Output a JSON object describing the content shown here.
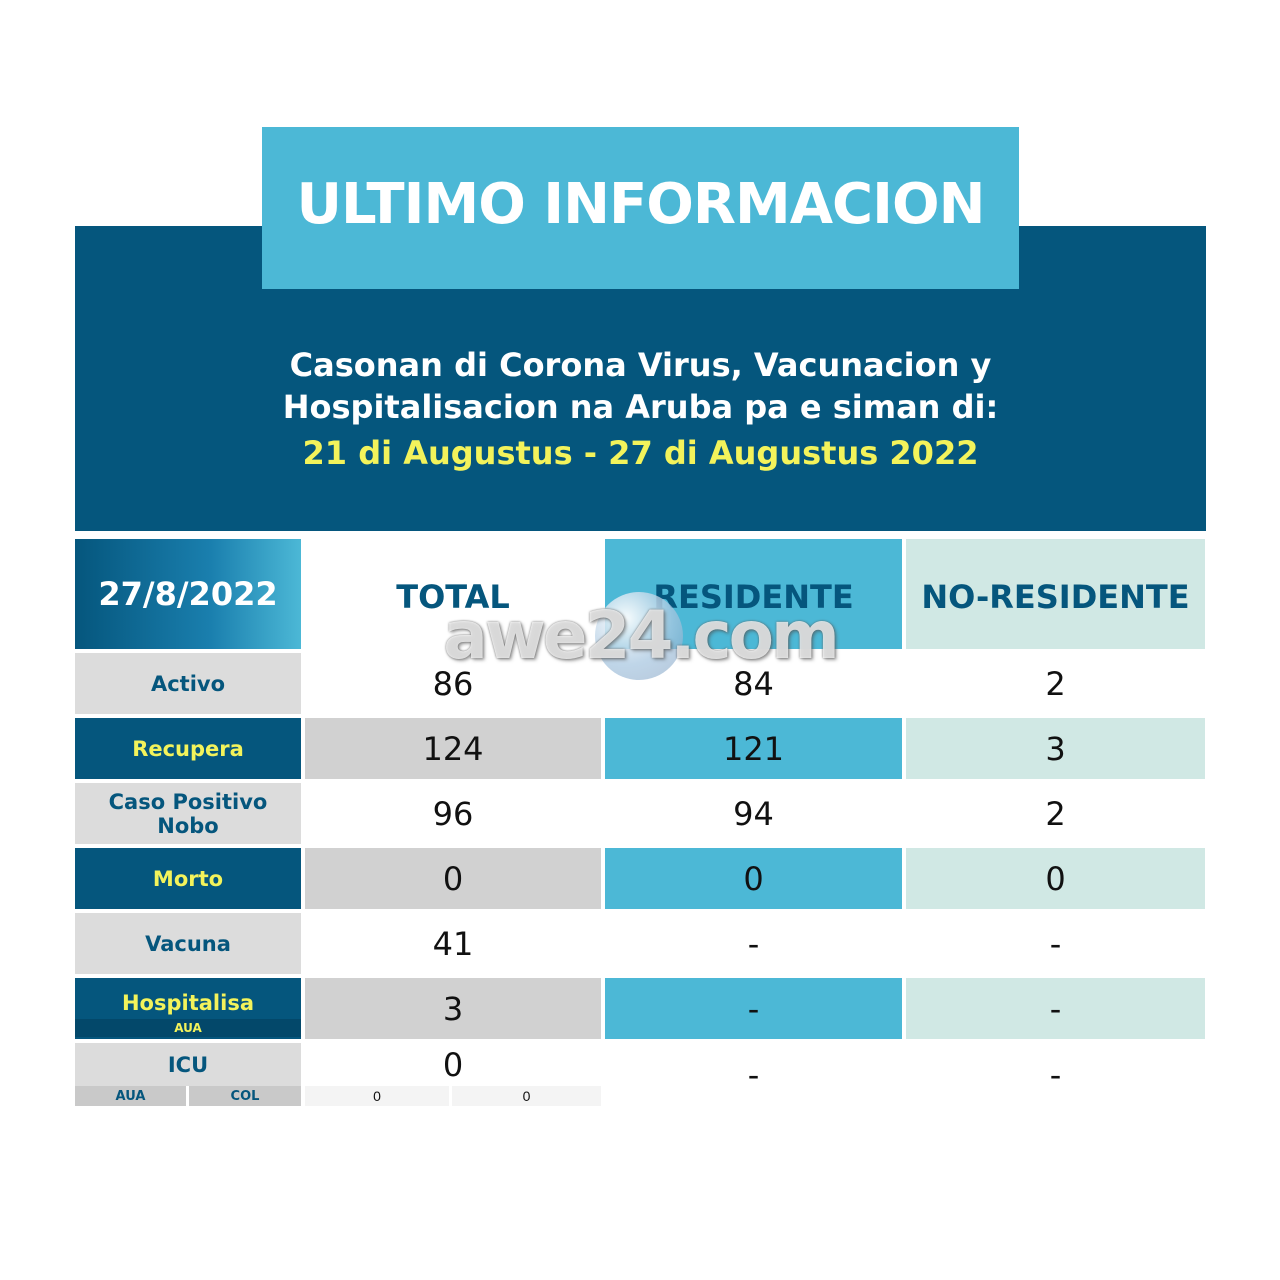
{
  "header": {
    "title": "ULTIMO INFORMACION",
    "subtitle_line1": "Casonan di Corona Virus, Vacunacion y",
    "subtitle_line2": "Hospitalisacion na Aruba pa e siman di:",
    "date_range": "21 di Augustus - 27 di Augustus 2022"
  },
  "table": {
    "date": "27/8/2022",
    "columns": [
      "TOTAL",
      "RESIDENTE",
      "NO-RESIDENTE"
    ],
    "rows": [
      {
        "label": "Activo",
        "total": "86",
        "residente": "84",
        "no_residente": "2"
      },
      {
        "label": "Recupera",
        "total": "124",
        "residente": "121",
        "no_residente": "3"
      },
      {
        "label": "Caso Positivo Nobo",
        "total": "96",
        "residente": "94",
        "no_residente": "2"
      },
      {
        "label": "Morto",
        "total": "0",
        "residente": "0",
        "no_residente": "0"
      },
      {
        "label": "Vacuna",
        "total": "41",
        "residente": "-",
        "no_residente": "-"
      },
      {
        "label": "Hospitalisa",
        "sublabel": "AUA",
        "total": "3",
        "residente": "-",
        "no_residente": "-"
      },
      {
        "label": "ICU",
        "total": "0",
        "residente": "-",
        "no_residente": "-",
        "sub": {
          "aua_label": "AUA",
          "col_label": "COL",
          "aua_value": "0",
          "col_value": "0"
        }
      }
    ]
  },
  "watermark": {
    "text": "awe24.com"
  },
  "colors": {
    "navy": "#05567d",
    "cyan": "#4cb8d6",
    "mint": "#d0e8e4",
    "yellow": "#f3f35b",
    "grey": "#d1d1d1"
  }
}
